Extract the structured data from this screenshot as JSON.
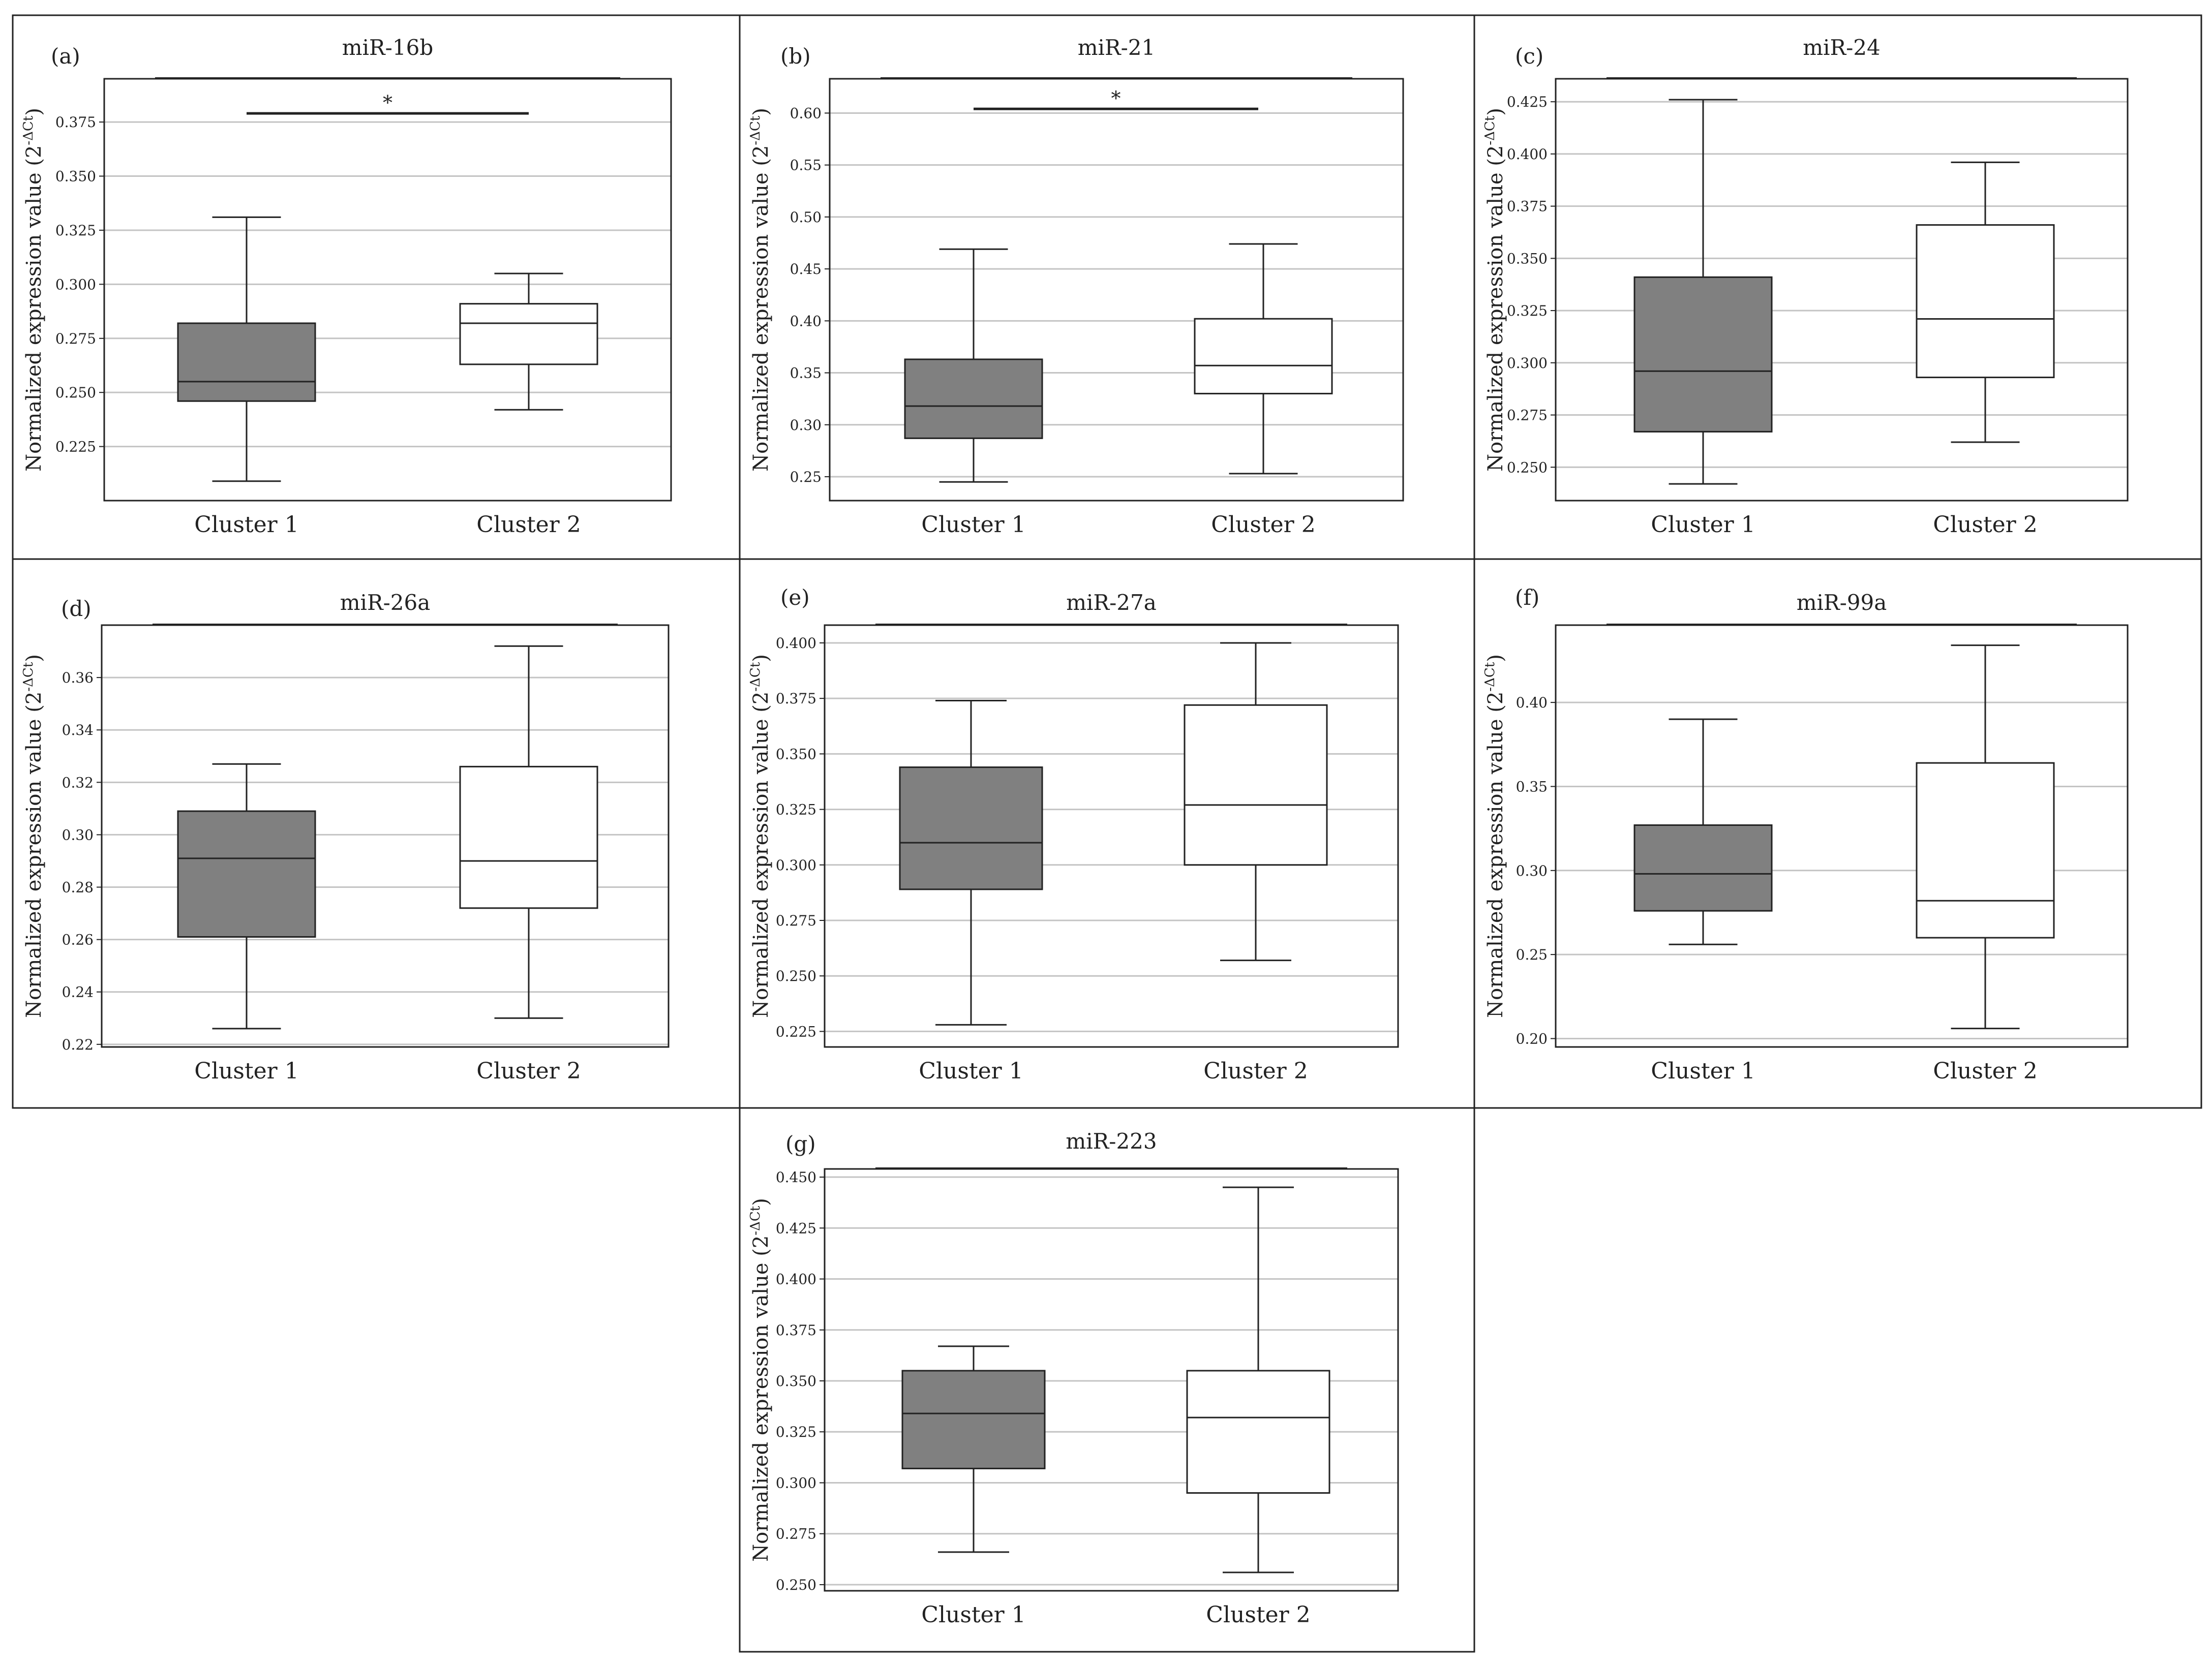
{
  "colors": {
    "cluster1_fill": "#808080",
    "cluster2_fill": "#ffffff",
    "stroke": "#222222",
    "grid": "#c4c4c4"
  },
  "chart_data": [
    {
      "type": "box",
      "letter": "(a)",
      "title": "miR-16b",
      "ylabel": "Normalized expression value (2",
      "ylabel_superscript": "-ΔCt",
      "ylabel_close": ")",
      "categories": [
        "Cluster 1",
        "Cluster 2"
      ],
      "ylim": [
        0.2,
        0.395
      ],
      "yticks": [
        0.225,
        0.25,
        0.275,
        0.3,
        0.325,
        0.35,
        0.375
      ],
      "ytick_labels": [
        "0.225",
        "0.250",
        "0.275",
        "0.300",
        "0.325",
        "0.350",
        "0.375"
      ],
      "boxes": [
        {
          "min": 0.209,
          "q1": 0.246,
          "median": 0.255,
          "q3": 0.282,
          "max": 0.331
        },
        {
          "min": 0.242,
          "q1": 0.263,
          "median": 0.282,
          "q3": 0.291,
          "max": 0.305
        }
      ],
      "significance": {
        "label": "*",
        "y": 0.379
      }
    },
    {
      "type": "box",
      "letter": "(b)",
      "title": "miR-21",
      "ylabel": "Normalized expression value (2",
      "ylabel_superscript": "-ΔCt",
      "ylabel_close": ")",
      "categories": [
        "Cluster 1",
        "Cluster 2"
      ],
      "ylim": [
        0.227,
        0.633
      ],
      "yticks": [
        0.25,
        0.3,
        0.35,
        0.4,
        0.45,
        0.5,
        0.55,
        0.6
      ],
      "ytick_labels": [
        "0.25",
        "0.30",
        "0.35",
        "0.40",
        "0.45",
        "0.50",
        "0.55",
        "0.60"
      ],
      "boxes": [
        {
          "min": 0.245,
          "q1": 0.287,
          "median": 0.318,
          "q3": 0.363,
          "max": 0.469
        },
        {
          "min": 0.253,
          "q1": 0.33,
          "median": 0.357,
          "q3": 0.402,
          "max": 0.474
        }
      ],
      "significance": {
        "label": "*",
        "y": 0.604
      }
    },
    {
      "type": "box",
      "letter": "(c)",
      "title": "miR-24",
      "ylabel": "Normalized expression value (2",
      "ylabel_superscript": "-ΔCt",
      "ylabel_close": ")",
      "categories": [
        "Cluster 1",
        "Cluster 2"
      ],
      "ylim": [
        0.234,
        0.436
      ],
      "yticks": [
        0.25,
        0.275,
        0.3,
        0.325,
        0.35,
        0.375,
        0.4,
        0.425
      ],
      "ytick_labels": [
        "0.250",
        "0.275",
        "0.300",
        "0.325",
        "0.350",
        "0.375",
        "0.400",
        "0.425"
      ],
      "boxes": [
        {
          "min": 0.242,
          "q1": 0.267,
          "median": 0.296,
          "q3": 0.341,
          "max": 0.426
        },
        {
          "min": 0.262,
          "q1": 0.293,
          "median": 0.321,
          "q3": 0.366,
          "max": 0.396
        }
      ]
    },
    {
      "type": "box",
      "letter": "(d)",
      "title": "miR-26a",
      "ylabel": "Normalized expression value (2",
      "ylabel_superscript": "-ΔCt",
      "ylabel_close": ")",
      "categories": [
        "Cluster 1",
        "Cluster 2"
      ],
      "ylim": [
        0.219,
        0.38
      ],
      "yticks": [
        0.22,
        0.24,
        0.26,
        0.28,
        0.3,
        0.32,
        0.34,
        0.36
      ],
      "ytick_labels": [
        "0.22",
        "0.24",
        "0.26",
        "0.28",
        "0.30",
        "0.32",
        "0.34",
        "0.36"
      ],
      "boxes": [
        {
          "min": 0.226,
          "q1": 0.261,
          "median": 0.291,
          "q3": 0.309,
          "max": 0.327
        },
        {
          "min": 0.23,
          "q1": 0.272,
          "median": 0.29,
          "q3": 0.326,
          "max": 0.372
        }
      ]
    },
    {
      "type": "box",
      "letter": "(e)",
      "title": "miR-27a",
      "ylabel": "Normalized expression value (2",
      "ylabel_superscript": "-ΔCt",
      "ylabel_close": ")",
      "categories": [
        "Cluster 1",
        "Cluster 2"
      ],
      "ylim": [
        0.218,
        0.408
      ],
      "yticks": [
        0.225,
        0.25,
        0.275,
        0.3,
        0.325,
        0.35,
        0.375,
        0.4
      ],
      "ytick_labels": [
        "0.225",
        "0.250",
        "0.275",
        "0.300",
        "0.325",
        "0.350",
        "0.375",
        "0.400"
      ],
      "boxes": [
        {
          "min": 0.228,
          "q1": 0.289,
          "median": 0.31,
          "q3": 0.344,
          "max": 0.374
        },
        {
          "min": 0.257,
          "q1": 0.3,
          "median": 0.327,
          "q3": 0.372,
          "max": 0.4
        }
      ]
    },
    {
      "type": "box",
      "letter": "(f)",
      "title": "miR-99a",
      "ylabel": "Normalized expression value (2",
      "ylabel_superscript": "-ΔCt",
      "ylabel_close": ")",
      "categories": [
        "Cluster 1",
        "Cluster 2"
      ],
      "ylim": [
        0.195,
        0.446
      ],
      "yticks": [
        0.2,
        0.25,
        0.3,
        0.35,
        0.4
      ],
      "ytick_labels": [
        "0.20",
        "0.25",
        "0.30",
        "0.35",
        "0.40"
      ],
      "boxes": [
        {
          "min": 0.256,
          "q1": 0.276,
          "median": 0.298,
          "q3": 0.327,
          "max": 0.39
        },
        {
          "min": 0.206,
          "q1": 0.26,
          "median": 0.282,
          "q3": 0.364,
          "max": 0.434
        }
      ]
    },
    {
      "type": "box",
      "letter": "(g)",
      "title": "miR-223",
      "ylabel": "Normalized expression value (2",
      "ylabel_superscript": "-ΔCt",
      "ylabel_close": ")",
      "categories": [
        "Cluster 1",
        "Cluster 2"
      ],
      "ylim": [
        0.247,
        0.454
      ],
      "yticks": [
        0.25,
        0.275,
        0.3,
        0.325,
        0.35,
        0.375,
        0.4,
        0.425,
        0.45
      ],
      "ytick_labels": [
        "0.250",
        "0.275",
        "0.300",
        "0.325",
        "0.350",
        "0.375",
        "0.400",
        "0.425",
        "0.450"
      ],
      "boxes": [
        {
          "min": 0.266,
          "q1": 0.307,
          "median": 0.334,
          "q3": 0.355,
          "max": 0.367
        },
        {
          "min": 0.256,
          "q1": 0.295,
          "median": 0.332,
          "q3": 0.355,
          "max": 0.445
        }
      ]
    }
  ]
}
